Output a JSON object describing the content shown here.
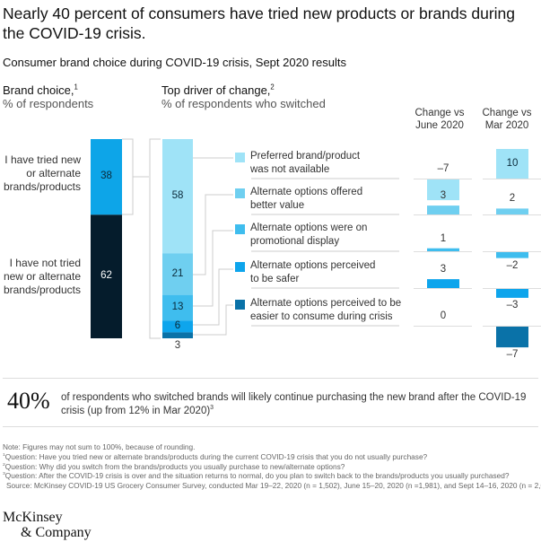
{
  "title": "Nearly 40 percent of consumers have tried new products or brands during the COVID-19 crisis.",
  "subtitle": "Consumer brand choice during COVID-19 crisis, Sept 2020 results",
  "colors": {
    "tried": "#0da5e8",
    "not_tried": "#051c2c",
    "driver1": "#9fe3f7",
    "driver2": "#6fcff0",
    "driver3": "#3fbdee",
    "driver4": "#0ea5ec",
    "driver5": "#0a72a8"
  },
  "chart_data": [
    {
      "type": "bar",
      "title": "Brand choice",
      "title_footnote": "1",
      "ylabel": "% of respondents",
      "stacked": true,
      "categories": [
        "I have tried new or alternate brands/products",
        "I have not tried new or alternate brands/products"
      ],
      "values": [
        38,
        62
      ]
    },
    {
      "type": "bar",
      "title": "Top driver of change",
      "title_footnote": "2",
      "ylabel": "% of respondents who switched",
      "stacked": true,
      "categories": [
        "Preferred brand/product was not available",
        "Alternate options offered better value",
        "Alternate options were on promotional display",
        "Alternate options perceived to be safer",
        "Alternate options perceived to be easier to consume during crisis"
      ],
      "values": [
        58,
        21,
        13,
        6,
        3
      ]
    },
    {
      "type": "bar",
      "title": "Change vs June 2020",
      "categories": [
        "Preferred brand/product was not available",
        "Alternate options offered better value",
        "Alternate options were on promotional display",
        "Alternate options perceived to be safer",
        "Alternate options perceived to be easier to consume during crisis"
      ],
      "values": [
        -7,
        3,
        1,
        3,
        0
      ],
      "labels": [
        "–7",
        "3",
        "1",
        "3",
        "0"
      ]
    },
    {
      "type": "bar",
      "title": "Change vs Mar 2020",
      "categories": [
        "Preferred brand/product was not available",
        "Alternate options offered better value",
        "Alternate options were on promotional display",
        "Alternate options perceived to be safer",
        "Alternate options perceived to be easier to consume during crisis"
      ],
      "values": [
        10,
        2,
        -2,
        -3,
        -7
      ],
      "labels": [
        "10",
        "2",
        "–2",
        "–3",
        "–7"
      ]
    }
  ],
  "headers": {
    "brand_choice": "Brand choice,",
    "brand_choice_sup": "1",
    "brand_choice_unit": "% of respondents",
    "driver": "Top driver of change,",
    "driver_sup": "2",
    "driver_unit": "% of respondents who switched",
    "col_june_1": "Change vs",
    "col_june_2": "June 2020",
    "col_mar_1": "Change vs",
    "col_mar_2": "Mar 2020"
  },
  "row_labels": {
    "tried": [
      "I have tried new",
      "or alternate",
      "brands/products"
    ],
    "not_tried": [
      "I have not tried",
      "new or alternate",
      "brands/products"
    ]
  },
  "legend": [
    [
      "Preferred brand/product",
      "was not available"
    ],
    [
      "Alternate options offered",
      "better value"
    ],
    [
      "Alternate options were on",
      "promotional display"
    ],
    [
      "Alternate options perceived",
      "to be safer"
    ],
    [
      "Alternate options perceived to be",
      "easier to consume during crisis"
    ]
  ],
  "callout": {
    "big": "40%",
    "text1": "of respondents who switched brands will likely continue purchasing the new brand after the COVID-19",
    "text2": "crisis (up from 12% in Mar 2020)",
    "sup": "3"
  },
  "notes": [
    "Note: Figures may not sum to 100%, because of rounding.",
    "Question: Have you tried new or alternate brands/products during the current COVID-19 crisis that you do not usually purchase?",
    "Question: Why did you switch from the brands/products you usually purchase to new/alternate options?",
    "Question: After the COVID-19 crisis is over and the situation returns to normal, do you plan to switch back to the brands/products you usually purchased?",
    "Source: McKinsey COVID-19 US Grocery Consumer Survey, conducted Mar 19–22, 2020 (n = 1,502), June 15–20, 2020 (n =1,981), and Sept 14–16, 2020 (n = 2,010)"
  ],
  "note_sups": [
    "",
    "1",
    "2",
    "3",
    ""
  ],
  "logo": [
    "McKinsey",
    "& Company"
  ]
}
